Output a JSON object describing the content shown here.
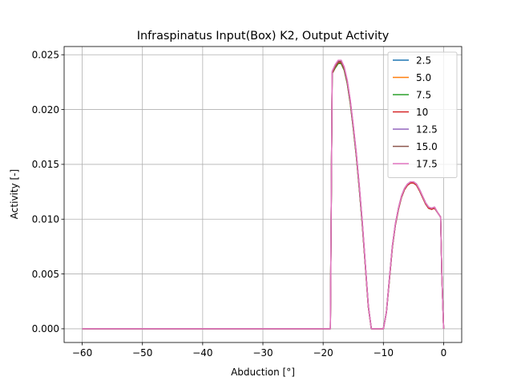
{
  "chart_data": {
    "type": "line",
    "title": "Infraspinatus Input(Box) K2, Output Activity",
    "xlabel": "Abduction [°]",
    "ylabel": "Activity [-]",
    "xlim": [
      -63,
      3
    ],
    "ylim": [
      -0.00125,
      0.02575
    ],
    "xticks": [
      -60,
      -50,
      -40,
      -30,
      -20,
      -10,
      0
    ],
    "xtick_labels": [
      "−60",
      "−50",
      "−40",
      "−30",
      "−20",
      "−10",
      "0"
    ],
    "yticks": [
      0.0,
      0.005,
      0.01,
      0.015,
      0.02,
      0.025
    ],
    "ytick_labels": [
      "0.000",
      "0.005",
      "0.010",
      "0.015",
      "0.020",
      "0.025"
    ],
    "grid": true,
    "legend_position": "top-right",
    "x": [
      -60,
      -50,
      -40,
      -30,
      -20,
      -19,
      -18.8,
      -18.5,
      -18,
      -17.5,
      -17,
      -16.5,
      -16,
      -15.5,
      -15,
      -14.5,
      -14,
      -13.5,
      -13,
      -12.5,
      -12,
      -11.5,
      -11,
      -10.5,
      -10,
      -9.5,
      -9,
      -8.5,
      -8,
      -7.5,
      -7,
      -6.5,
      -6,
      -5.5,
      -5,
      -4.5,
      -4,
      -3.5,
      -3,
      -2.5,
      -2,
      -1.5,
      -1,
      -0.5,
      -0.3,
      0
    ],
    "series": [
      {
        "name": "2.5",
        "color": "#1f77b4",
        "values": [
          0,
          0,
          0,
          0,
          0,
          0,
          0,
          0.0233,
          0.0238,
          0.0242,
          0.0242,
          0.0236,
          0.0224,
          0.0206,
          0.0183,
          0.0158,
          0.0128,
          0.0095,
          0.0058,
          0.002,
          0,
          0,
          0,
          0,
          0,
          0.0015,
          0.0045,
          0.0075,
          0.0095,
          0.0109,
          0.012,
          0.0127,
          0.0131,
          0.0133,
          0.0133,
          0.0131,
          0.0126,
          0.012,
          0.0114,
          0.011,
          0.0109,
          0.011,
          0.0106,
          0.0102,
          0.005,
          0
        ]
      },
      {
        "name": "5.0",
        "color": "#ff7f0e",
        "values": [
          0,
          0,
          0,
          0,
          0,
          0,
          0,
          0.0233,
          0.0238,
          0.0242,
          0.0242,
          0.0236,
          0.0224,
          0.0206,
          0.0183,
          0.0158,
          0.0128,
          0.0095,
          0.0058,
          0.002,
          0,
          0,
          0,
          0,
          0,
          0.0015,
          0.0045,
          0.0075,
          0.0095,
          0.0109,
          0.012,
          0.0127,
          0.0131,
          0.0133,
          0.0133,
          0.0131,
          0.0126,
          0.012,
          0.0114,
          0.011,
          0.0109,
          0.011,
          0.0106,
          0.0102,
          0.005,
          0
        ]
      },
      {
        "name": "7.5",
        "color": "#2ca02c",
        "values": [
          0,
          0,
          0,
          0,
          0,
          0,
          0,
          0.0233,
          0.0238,
          0.0242,
          0.0242,
          0.0236,
          0.0224,
          0.0206,
          0.0183,
          0.0158,
          0.0128,
          0.0095,
          0.0058,
          0.002,
          0,
          0,
          0,
          0,
          0,
          0.0015,
          0.0045,
          0.0075,
          0.0095,
          0.0109,
          0.012,
          0.0127,
          0.0131,
          0.0133,
          0.0133,
          0.0131,
          0.0126,
          0.012,
          0.0114,
          0.011,
          0.0109,
          0.011,
          0.0106,
          0.0102,
          0.005,
          0
        ]
      },
      {
        "name": "10",
        "color": "#d62728",
        "values": [
          0,
          0,
          0,
          0,
          0,
          0,
          0,
          0.0233,
          0.0239,
          0.0243,
          0.0243,
          0.0237,
          0.0225,
          0.0207,
          0.0184,
          0.0159,
          0.0129,
          0.0096,
          0.0058,
          0.002,
          0,
          0,
          0,
          0,
          0,
          0.0015,
          0.0045,
          0.0075,
          0.0095,
          0.0109,
          0.012,
          0.0127,
          0.0131,
          0.0133,
          0.0133,
          0.0131,
          0.0126,
          0.012,
          0.0114,
          0.011,
          0.0109,
          0.011,
          0.0106,
          0.0102,
          0.005,
          0
        ]
      },
      {
        "name": "12.5",
        "color": "#9467bd",
        "values": [
          0,
          0,
          0,
          0,
          0,
          0,
          0,
          0.0234,
          0.024,
          0.0244,
          0.0244,
          0.0238,
          0.0226,
          0.0208,
          0.0185,
          0.016,
          0.013,
          0.0097,
          0.0059,
          0.0021,
          0,
          0,
          0,
          0,
          0,
          0.0015,
          0.0046,
          0.0076,
          0.0096,
          0.011,
          0.0121,
          0.0128,
          0.0132,
          0.0134,
          0.0134,
          0.0132,
          0.0127,
          0.0121,
          0.0115,
          0.0111,
          0.011,
          0.0111,
          0.0106,
          0.0102,
          0.005,
          0
        ]
      },
      {
        "name": "15.0",
        "color": "#8c564b",
        "values": [
          0,
          0,
          0,
          0,
          0,
          0,
          0,
          0.0234,
          0.024,
          0.0244,
          0.0244,
          0.0238,
          0.0226,
          0.0208,
          0.0185,
          0.016,
          0.013,
          0.0097,
          0.0059,
          0.0021,
          0,
          0,
          0,
          0,
          0,
          0.0015,
          0.0046,
          0.0076,
          0.0096,
          0.011,
          0.0121,
          0.0128,
          0.0132,
          0.0134,
          0.0134,
          0.0132,
          0.0127,
          0.0121,
          0.0115,
          0.0111,
          0.011,
          0.0111,
          0.0106,
          0.0102,
          0.005,
          0
        ]
      },
      {
        "name": "17.5",
        "color": "#e377c2",
        "values": [
          0,
          0,
          0,
          0,
          0,
          0,
          0,
          0.0235,
          0.0241,
          0.0245,
          0.0245,
          0.0239,
          0.0227,
          0.0209,
          0.0186,
          0.0161,
          0.0131,
          0.0098,
          0.006,
          0.0021,
          0,
          0,
          0,
          0,
          0,
          0.0015,
          0.0046,
          0.0076,
          0.0096,
          0.011,
          0.0121,
          0.0128,
          0.0132,
          0.0134,
          0.0134,
          0.0132,
          0.0127,
          0.0121,
          0.0115,
          0.0111,
          0.011,
          0.0111,
          0.0106,
          0.0102,
          0.005,
          0
        ]
      }
    ]
  }
}
